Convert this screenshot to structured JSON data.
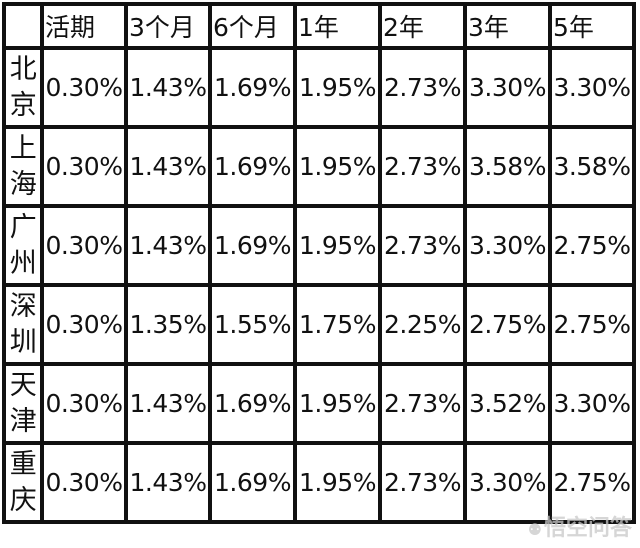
{
  "table": {
    "headers": [
      "",
      "活期",
      "3个月",
      "6个月",
      "1年",
      "2年",
      "3年",
      "5年"
    ],
    "rows": [
      {
        "city": "北京",
        "values": [
          "0.30%",
          "1.43%",
          "1.69%",
          "1.95%",
          "2.73%",
          "3.30%",
          "3.30%"
        ]
      },
      {
        "city": "上海",
        "values": [
          "0.30%",
          "1.43%",
          "1.69%",
          "1.95%",
          "2.73%",
          "3.58%",
          "3.58%"
        ]
      },
      {
        "city": "广州",
        "values": [
          "0.30%",
          "1.43%",
          "1.69%",
          "1.95%",
          "2.73%",
          "3.30%",
          "2.75%"
        ]
      },
      {
        "city": "深圳",
        "values": [
          "0.30%",
          "1.35%",
          "1.55%",
          "1.75%",
          "2.25%",
          "2.75%",
          "2.75%"
        ]
      },
      {
        "city": "天津",
        "values": [
          "0.30%",
          "1.43%",
          "1.69%",
          "1.95%",
          "2.73%",
          "3.52%",
          "3.30%"
        ]
      },
      {
        "city": "重庆",
        "values": [
          "0.30%",
          "1.43%",
          "1.69%",
          "1.95%",
          "2.73%",
          "3.30%",
          "2.75%"
        ]
      }
    ]
  },
  "watermark": {
    "text": "悟空问答",
    "icon": "wukong-logo-icon"
  }
}
